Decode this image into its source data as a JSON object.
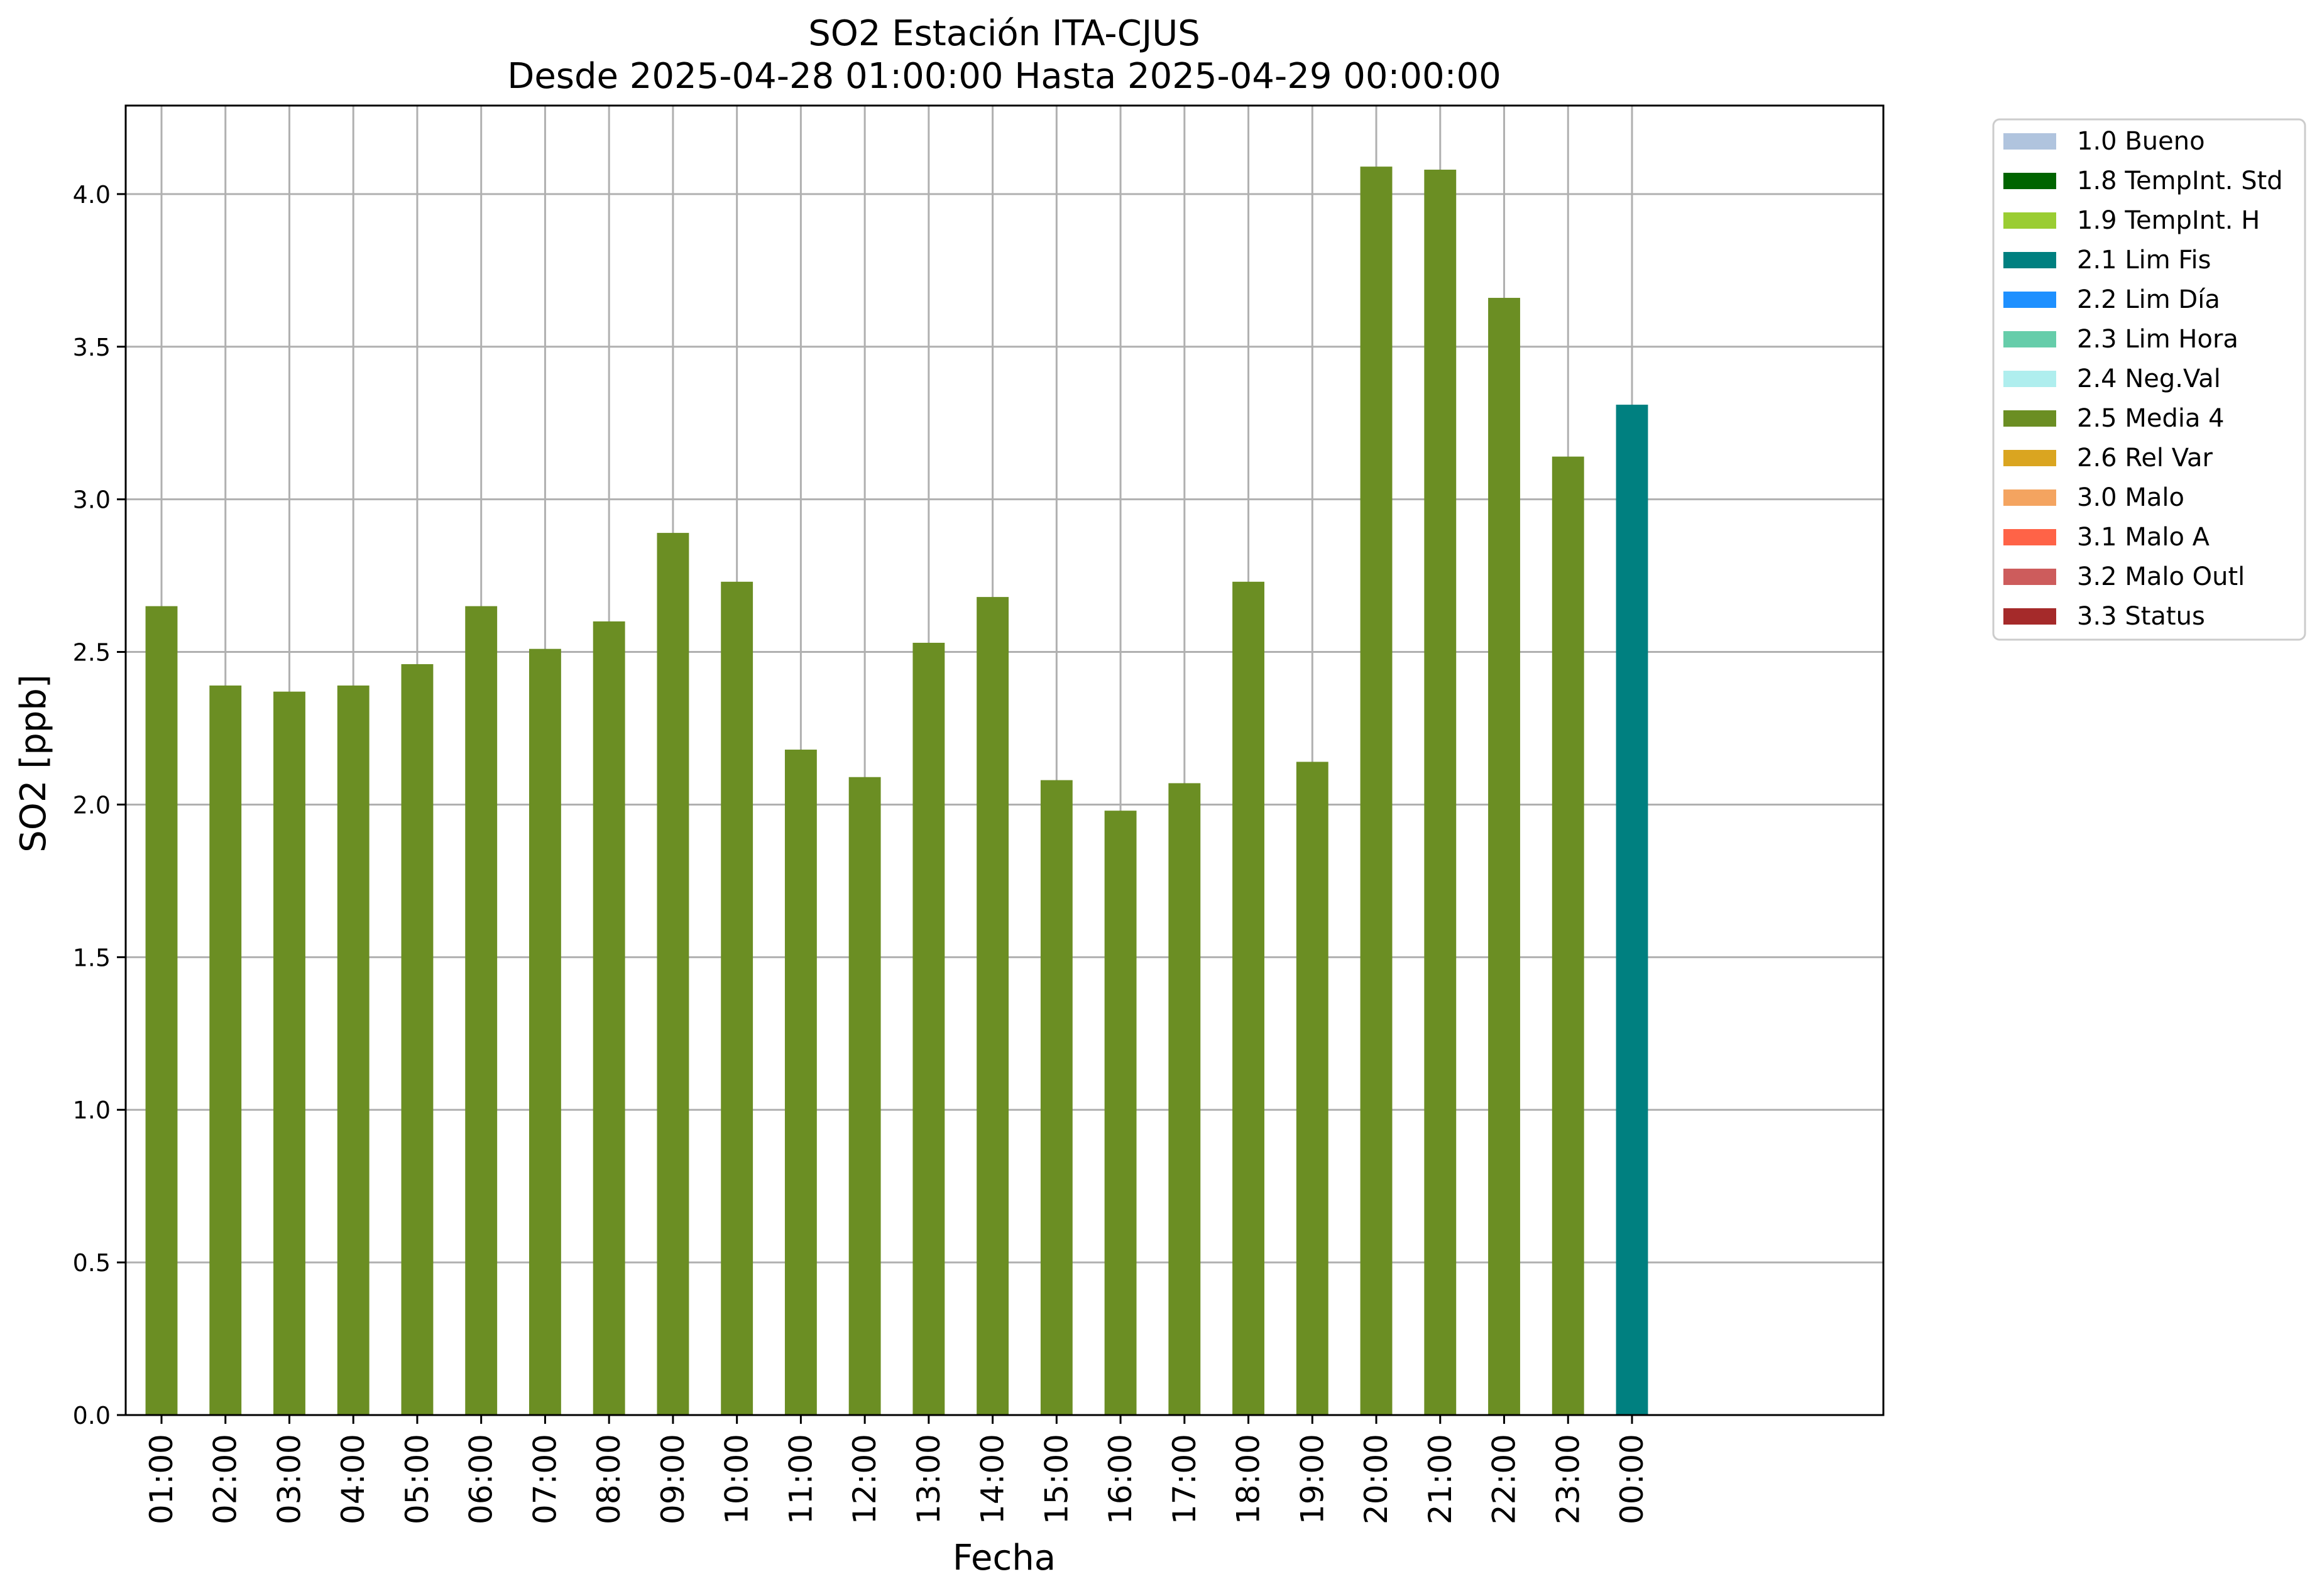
{
  "chart_data": {
    "type": "bar",
    "title": "SO2 Estación ITA-CJUS",
    "subtitle": "Desde 2025-04-28 01:00:00 Hasta 2025-04-29 00:00:00",
    "xlabel": "Fecha",
    "ylabel": "SO2 [ppb]",
    "ylim": [
      0,
      4.29
    ],
    "yticks": [
      "0.0",
      "0.5",
      "1.0",
      "1.5",
      "2.0",
      "2.5",
      "3.0",
      "3.5",
      "4.0"
    ],
    "grid": true,
    "legend_position": "outside-top-right",
    "categories": [
      "01:00",
      "02:00",
      "03:00",
      "04:00",
      "05:00",
      "06:00",
      "07:00",
      "08:00",
      "09:00",
      "10:00",
      "11:00",
      "12:00",
      "13:00",
      "14:00",
      "15:00",
      "16:00",
      "17:00",
      "18:00",
      "19:00",
      "20:00",
      "21:00",
      "22:00",
      "23:00",
      "00:00"
    ],
    "values": [
      2.65,
      2.39,
      2.37,
      2.39,
      2.46,
      2.65,
      2.51,
      2.6,
      2.89,
      2.73,
      2.18,
      2.09,
      2.53,
      2.68,
      2.08,
      1.98,
      2.07,
      2.73,
      2.14,
      4.09,
      4.08,
      3.66,
      3.14,
      3.31
    ],
    "flags": [
      "2.5 Media 4",
      "2.5 Media 4",
      "2.5 Media 4",
      "2.5 Media 4",
      "2.5 Media 4",
      "2.5 Media 4",
      "2.5 Media 4",
      "2.5 Media 4",
      "2.5 Media 4",
      "2.5 Media 4",
      "2.5 Media 4",
      "2.5 Media 4",
      "2.5 Media 4",
      "2.5 Media 4",
      "2.5 Media 4",
      "2.5 Media 4",
      "2.5 Media 4",
      "2.5 Media 4",
      "2.5 Media 4",
      "2.5 Media 4",
      "2.5 Media 4",
      "2.5 Media 4",
      "2.5 Media 4",
      "2.1 Lim Fis"
    ],
    "legend": [
      {
        "label": "1.0 Bueno",
        "color": "#b0c4de"
      },
      {
        "label": "1.8 TempInt. Std",
        "color": "#006400"
      },
      {
        "label": "1.9 TempInt. H",
        "color": "#9acd32"
      },
      {
        "label": "2.1 Lim Fis",
        "color": "#008080"
      },
      {
        "label": "2.2 Lim Día",
        "color": "#1e90ff"
      },
      {
        "label": "2.3 Lim Hora",
        "color": "#66cdaa"
      },
      {
        "label": "2.4 Neg.Val",
        "color": "#afeeee"
      },
      {
        "label": "2.5 Media 4",
        "color": "#6b8e23"
      },
      {
        "label": "2.6 Rel Var",
        "color": "#daa520"
      },
      {
        "label": "3.0 Malo",
        "color": "#f4a460"
      },
      {
        "label": "3.1 Malo A",
        "color": "#ff6347"
      },
      {
        "label": "3.2 Malo Outl",
        "color": "#cd5c5c"
      },
      {
        "label": "3.3 Status",
        "color": "#a52a2a"
      }
    ]
  }
}
